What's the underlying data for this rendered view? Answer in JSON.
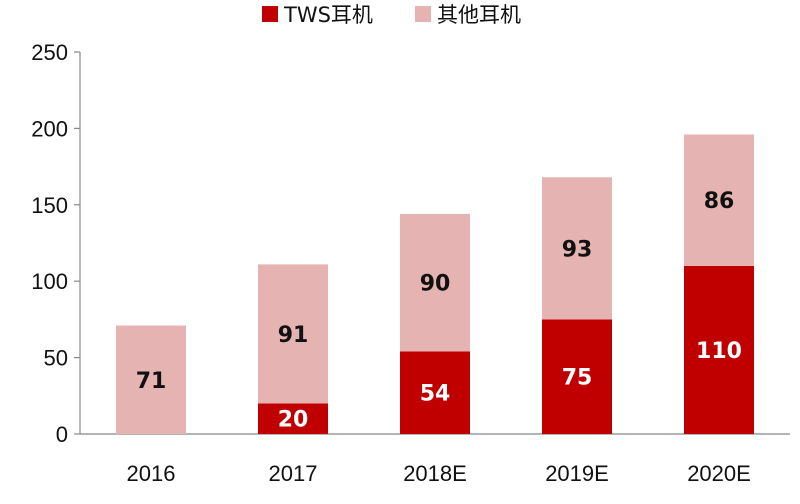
{
  "chart_data": {
    "type": "bar",
    "stacked": true,
    "categories": [
      "2016",
      "2017",
      "2018E",
      "2019E",
      "2020E"
    ],
    "series": [
      {
        "name": "TWS耳机",
        "values": [
          0,
          20,
          54,
          75,
          110
        ],
        "color": "#c00000"
      },
      {
        "name": "其他耳机",
        "values": [
          71,
          91,
          90,
          93,
          86
        ],
        "color": "#e6b3b3"
      }
    ],
    "title": "",
    "xlabel": "",
    "ylabel": "",
    "ylim": [
      0,
      250
    ],
    "yticks": [
      "0",
      "50",
      "100",
      "150",
      "200",
      "250"
    ],
    "grid": false,
    "legend_position": "top"
  }
}
